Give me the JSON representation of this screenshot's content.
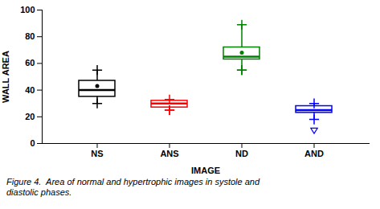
{
  "chart_data": {
    "type": "box",
    "categories": [
      "NS",
      "ANS",
      "ND",
      "AND"
    ],
    "colors": [
      "black",
      "red",
      "green",
      "blue"
    ],
    "boxes": [
      {
        "q1": 35,
        "median": 40,
        "q3": 47,
        "whislo": 30,
        "whishi": 55,
        "mean": 43,
        "fliers": []
      },
      {
        "q1": 27,
        "median": 30,
        "q3": 32,
        "whislo": 25,
        "whishi": 33,
        "mean": null,
        "fliers": [
          25
        ]
      },
      {
        "q1": 63,
        "median": 65,
        "q3": 72,
        "whislo": 55,
        "whishi": 89,
        "mean": 68,
        "fliers": [
          55
        ]
      },
      {
        "q1": 23,
        "median": 25,
        "q3": 28,
        "whislo": 18,
        "whishi": 30,
        "mean": null,
        "fliers": [
          10
        ]
      }
    ],
    "ylim": [
      0,
      100
    ],
    "yticks": [
      0,
      20,
      40,
      60,
      80,
      100
    ],
    "xlabel": "IMAGE",
    "ylabel": "WALL AREA",
    "caption": "Figure 4.  Area of normal and hypertrophic images in systole and\ndiastolic phases."
  }
}
